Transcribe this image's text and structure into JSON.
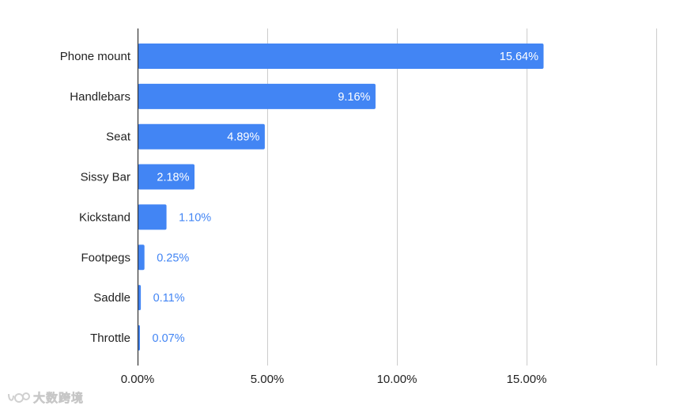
{
  "chart_data": {
    "type": "bar",
    "orientation": "horizontal",
    "categories": [
      "Phone mount",
      "Handlebars",
      "Seat",
      "Sissy Bar",
      "Kickstand",
      "Footpegs",
      "Saddle",
      "Throttle"
    ],
    "values": [
      15.64,
      9.16,
      4.89,
      2.18,
      1.1,
      0.25,
      0.11,
      0.07
    ],
    "data_labels": [
      "15.64%",
      "9.16%",
      "4.89%",
      "2.18%",
      "1.10%",
      "0.25%",
      "0.11%",
      "0.07%"
    ],
    "x_ticks": [
      0,
      5,
      10,
      15
    ],
    "x_tick_labels": [
      "0.00%",
      "5.00%",
      "10.00%",
      "15.00%"
    ],
    "xlim": [
      0,
      20
    ],
    "grid": true,
    "title": "",
    "xlabel": "",
    "ylabel": "",
    "colors": {
      "bar": "#4285f4",
      "label_inside": "#ffffff",
      "label_outside": "#4285f4",
      "grid": "#cccccc",
      "axis": "#333333"
    }
  },
  "watermark": {
    "text": "大数跨境",
    "icon": "brand-logo-icon"
  }
}
